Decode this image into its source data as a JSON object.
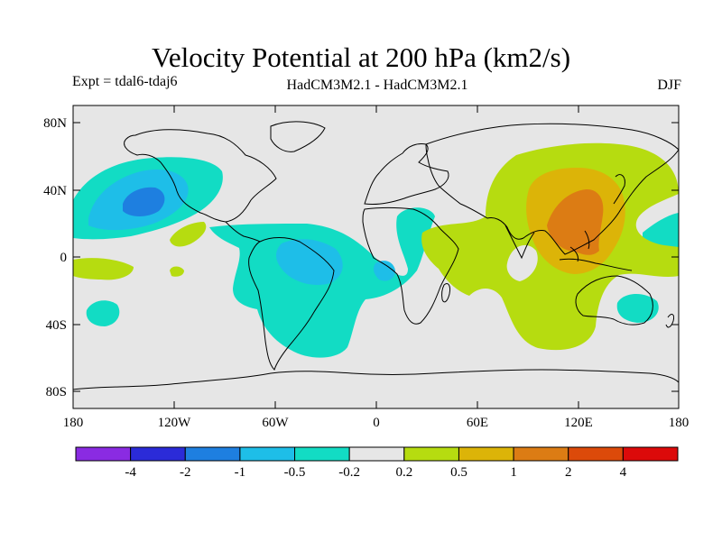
{
  "title": "Velocity Potential at 200 hPa (km2/s)",
  "subtitle_left": "Expt = tdal6-tdaj6",
  "subtitle_center": "HadCM3M2.1 - HadCM3M2.1",
  "subtitle_right": "DJF",
  "axes": {
    "lat_labels": [
      "80N",
      "40N",
      "0",
      "40S",
      "80S"
    ],
    "lon_labels": [
      "180",
      "120W",
      "60W",
      "0",
      "60E",
      "120E",
      "180"
    ]
  },
  "colorbar": {
    "colors": [
      "#8a2be2",
      "#2b2bd8",
      "#1e7fe0",
      "#1ebee8",
      "#12dcc4",
      "#e6e6e6",
      "#b6dc10",
      "#dcb408",
      "#dc7c14",
      "#dc4a0a",
      "#dc0a0a"
    ],
    "labels": [
      "-4",
      "-2",
      "-1",
      "-0.5",
      "-0.2",
      "0.2",
      "0.5",
      "1",
      "2",
      "4"
    ]
  },
  "chart_data": {
    "type": "heatmap",
    "title": "Velocity Potential at 200 hPa (km2/s)",
    "variable": "velocity potential difference",
    "units": "km2/s",
    "level": "200 hPa",
    "season": "DJF",
    "contour_levels": [
      -4,
      -2,
      -1,
      -0.5,
      -0.2,
      0.2,
      0.5,
      1,
      2,
      4
    ],
    "xlim": [
      -180,
      180
    ],
    "ylim": [
      -90,
      90
    ],
    "notable_regions": [
      {
        "name": "Northeast Pacific minimum",
        "range": "-2 to -1"
      },
      {
        "name": "South America / tropical Atlantic negative",
        "range": "-1 to -0.2"
      },
      {
        "name": "Western Pacific / East Asia maximum",
        "range": "1 to 2"
      },
      {
        "name": "Indian Ocean / Asia positive",
        "range": "0.2 to 1"
      }
    ]
  }
}
